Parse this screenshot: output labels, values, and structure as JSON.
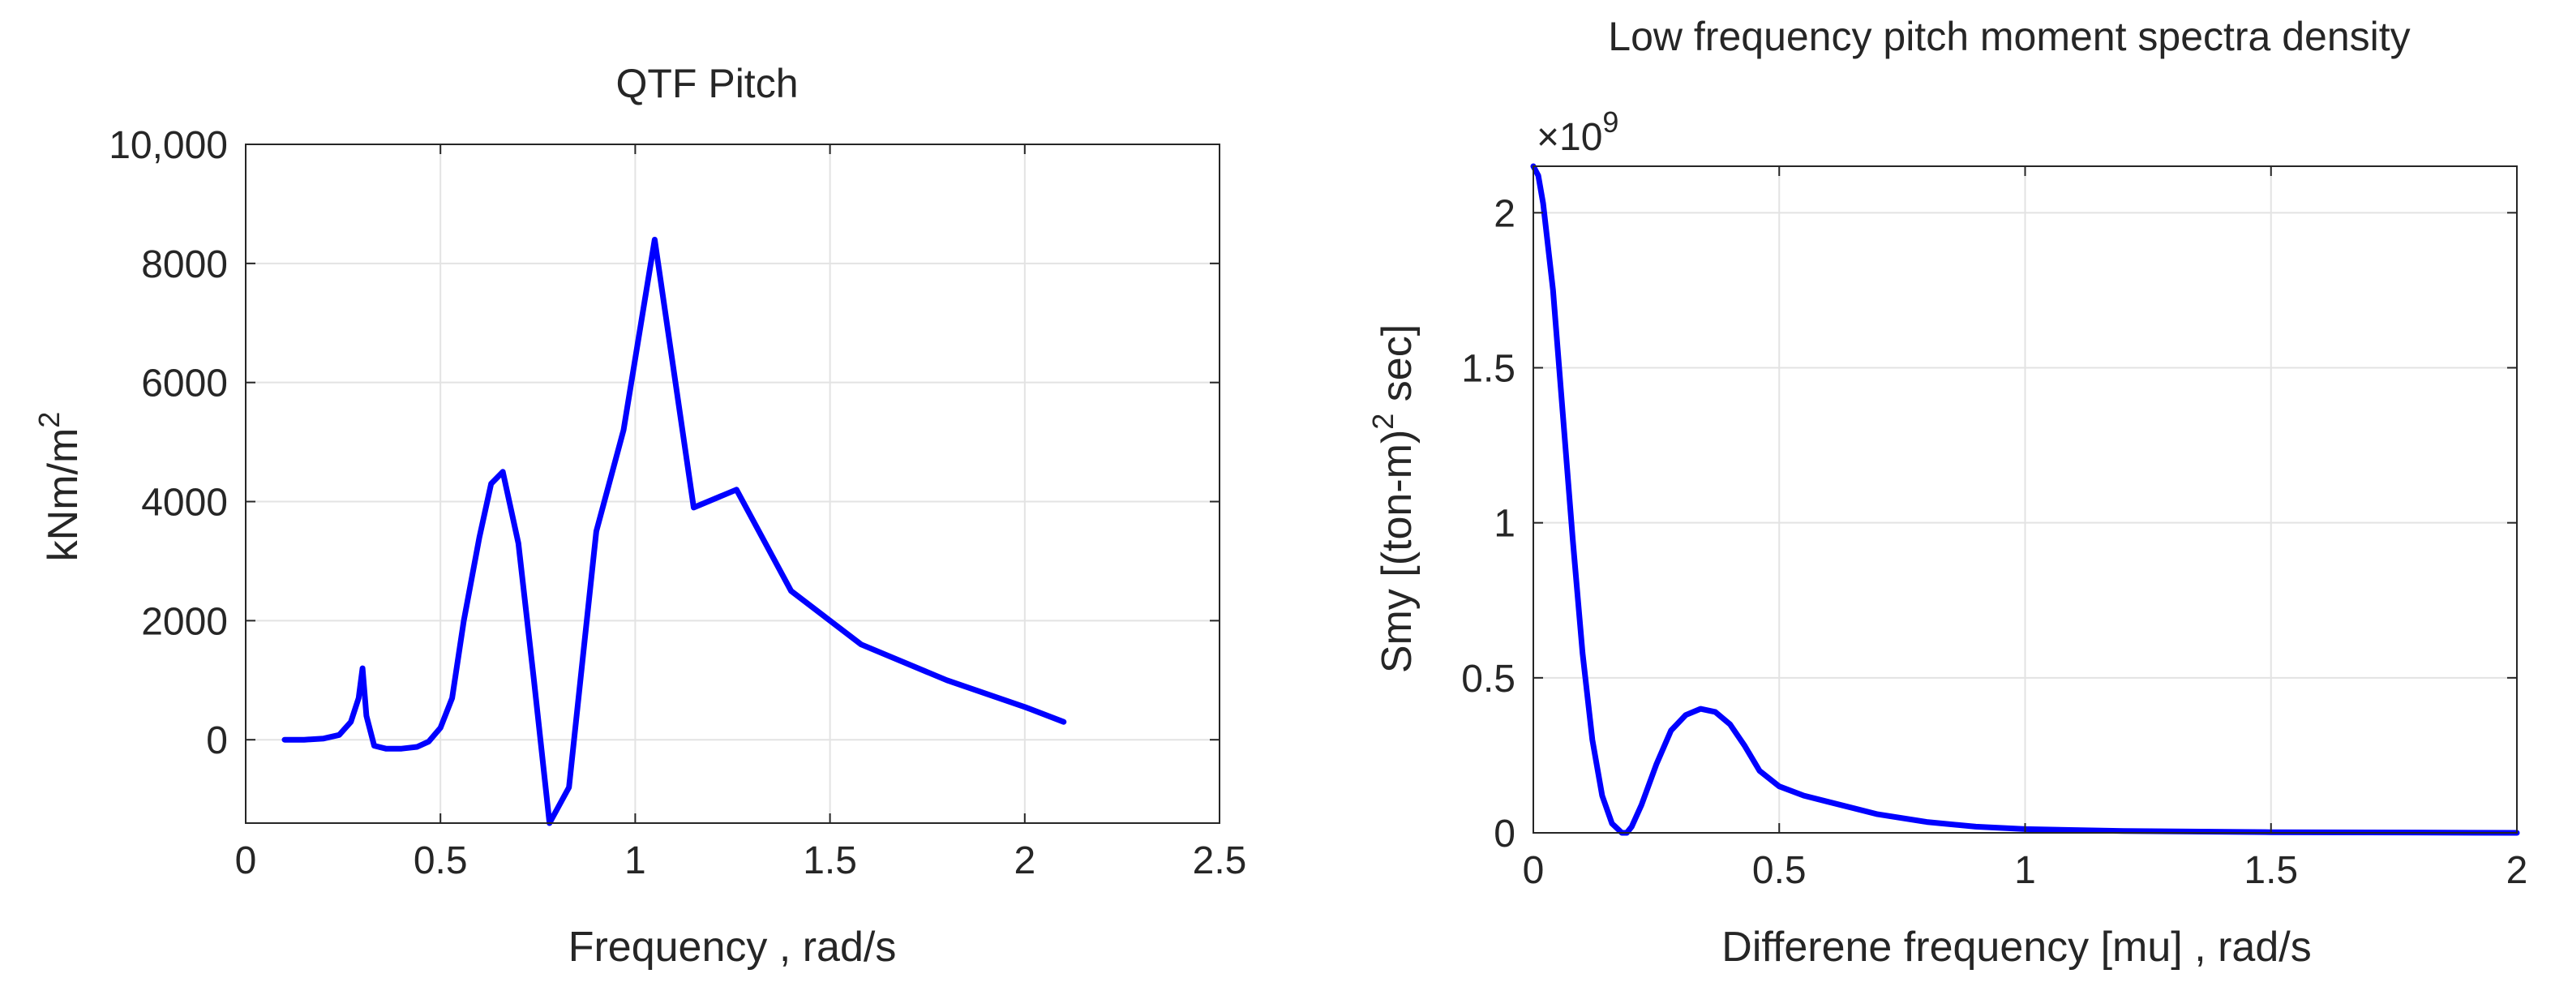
{
  "chart_data": [
    {
      "type": "line",
      "title": "QTF Pitch",
      "xlabel": "Frequency , rad/s",
      "ylabel": "kNm/m",
      "ylabel_superscript": "2",
      "xlim": [
        0,
        2.5
      ],
      "ylim": [
        -1400,
        10000
      ],
      "xticks": [
        0,
        0.5,
        1,
        1.5,
        2,
        2.5
      ],
      "xtick_labels": [
        "0",
        "0.5",
        "1",
        "1.5",
        "2",
        "2.5"
      ],
      "yticks": [
        0,
        2000,
        4000,
        6000,
        8000,
        10000
      ],
      "ytick_labels": [
        "0",
        "2000",
        "4000",
        "6000",
        "8000",
        "10,000"
      ],
      "grid": true,
      "color": "#0000ff",
      "series": [
        {
          "name": "QTF Pitch",
          "x": [
            0.1,
            0.15,
            0.2,
            0.24,
            0.27,
            0.29,
            0.3,
            0.31,
            0.33,
            0.36,
            0.4,
            0.44,
            0.47,
            0.5,
            0.53,
            0.56,
            0.6,
            0.63,
            0.66,
            0.7,
            0.74,
            0.78,
            0.83,
            0.9,
            0.97,
            1.05,
            1.15,
            1.26,
            1.4,
            1.58,
            1.8,
            2.0,
            2.1
          ],
          "y": [
            0,
            0,
            20,
            80,
            300,
            700,
            1200,
            400,
            -100,
            -150,
            -150,
            -120,
            -30,
            200,
            700,
            2000,
            3400,
            4300,
            4500,
            3300,
            1000,
            -1400,
            -800,
            3500,
            5200,
            8400,
            3900,
            4200,
            2500,
            1600,
            1000,
            550,
            300
          ]
        }
      ]
    },
    {
      "type": "line",
      "title": "Low frequency pitch moment spectra density",
      "xlabel": "Differene frequency [mu] , rad/s",
      "ylabel": "Smy [(ton-m)",
      "ylabel_superscript": "2",
      "ylabel_suffix": " sec]",
      "exponent_prefix": "×10",
      "exponent_power": "9",
      "xlim": [
        0,
        2
      ],
      "ylim": [
        0,
        2.15
      ],
      "xticks": [
        0,
        0.5,
        1,
        1.5,
        2
      ],
      "xtick_labels": [
        "0",
        "0.5",
        "1",
        "1.5",
        "2"
      ],
      "yticks": [
        0,
        0.5,
        1,
        1.5,
        2
      ],
      "ytick_labels": [
        "0",
        "0.5",
        "1",
        "1.5",
        "2"
      ],
      "grid": true,
      "color": "#0000ff",
      "series": [
        {
          "name": "Smy",
          "x": [
            0,
            0.01,
            0.02,
            0.04,
            0.06,
            0.08,
            0.1,
            0.12,
            0.14,
            0.16,
            0.18,
            0.19,
            0.2,
            0.22,
            0.25,
            0.28,
            0.31,
            0.34,
            0.37,
            0.4,
            0.43,
            0.46,
            0.5,
            0.55,
            0.6,
            0.7,
            0.8,
            0.9,
            1.0,
            1.2,
            1.5,
            1.8,
            2.0
          ],
          "y": [
            2.15,
            2.12,
            2.03,
            1.75,
            1.35,
            0.95,
            0.58,
            0.3,
            0.12,
            0.03,
            0.0,
            0.0,
            0.02,
            0.09,
            0.22,
            0.33,
            0.38,
            0.4,
            0.39,
            0.35,
            0.28,
            0.2,
            0.15,
            0.12,
            0.1,
            0.06,
            0.035,
            0.02,
            0.012,
            0.006,
            0.002,
            0.001,
            0.0
          ]
        }
      ]
    }
  ]
}
